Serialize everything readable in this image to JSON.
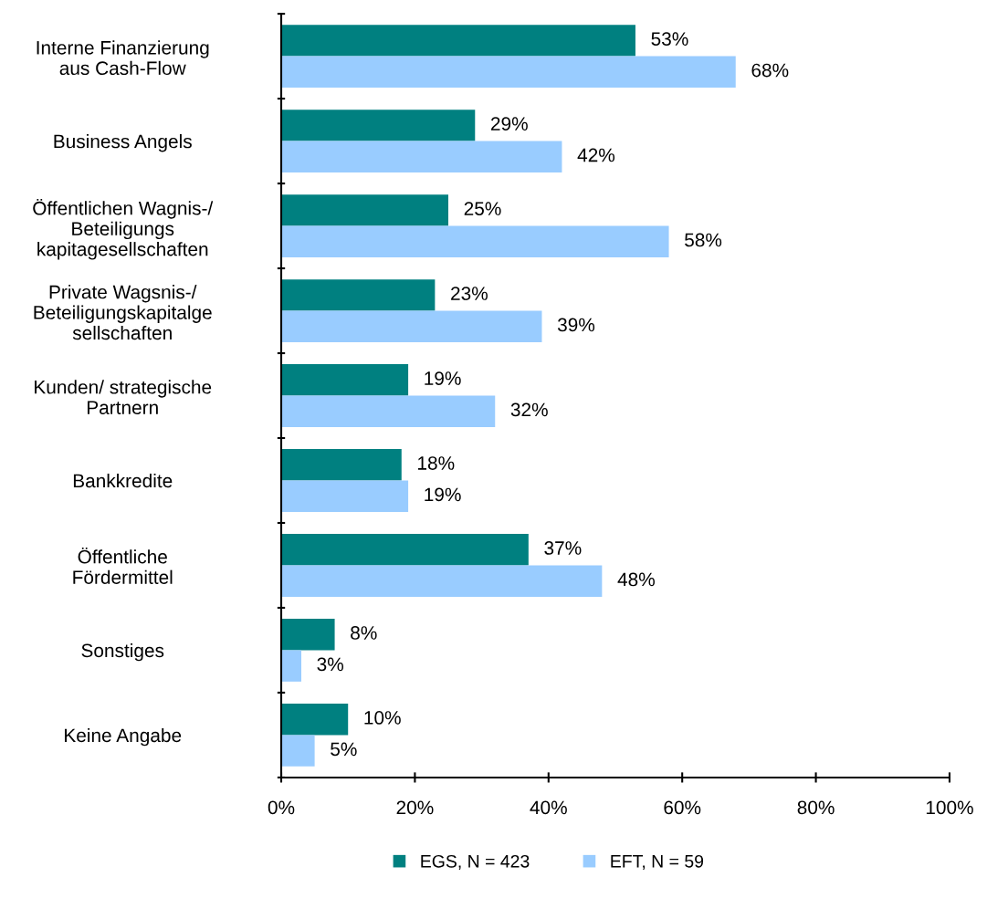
{
  "chart_data": {
    "type": "bar",
    "orientation": "horizontal",
    "categories": [
      "Interne Finanzierung\naus Cash-Flow",
      "Business Angels",
      "Öffentlichen Wagnis-/\nBeteiligungs\nkapitagesellschaften",
      "Private Wagsnis-/\nBeteiligungskapitalge\nsellschaften",
      "Kunden/ strategische\nPartnern",
      "Bankkredite",
      "Öffentliche\nFördermittel",
      "Sonstiges",
      "Keine Angabe"
    ],
    "series": [
      {
        "name": "EGS, N = 423",
        "color": "#008080",
        "values": [
          53,
          29,
          25,
          23,
          19,
          18,
          37,
          8,
          10
        ],
        "value_labels": [
          "53%",
          "29%",
          "25%",
          "23%",
          "19%",
          "18%",
          "37%",
          "8%",
          "10%"
        ]
      },
      {
        "name": "EFT, N = 59",
        "color": "#99ccff",
        "values": [
          68,
          42,
          58,
          39,
          32,
          19,
          48,
          3,
          5
        ],
        "value_labels": [
          "68%",
          "42%",
          "58%",
          "39%",
          "32%",
          "19%",
          "48%",
          "3%",
          "5%"
        ]
      }
    ],
    "xlim": [
      0,
      100
    ],
    "xticks": [
      {
        "value": 0,
        "label": "0%"
      },
      {
        "value": 20,
        "label": "20%"
      },
      {
        "value": 40,
        "label": "40%"
      },
      {
        "value": 60,
        "label": "60%"
      },
      {
        "value": 80,
        "label": "80%"
      },
      {
        "value": 100,
        "label": "100%"
      }
    ],
    "grid": false,
    "legend": "bottom"
  }
}
